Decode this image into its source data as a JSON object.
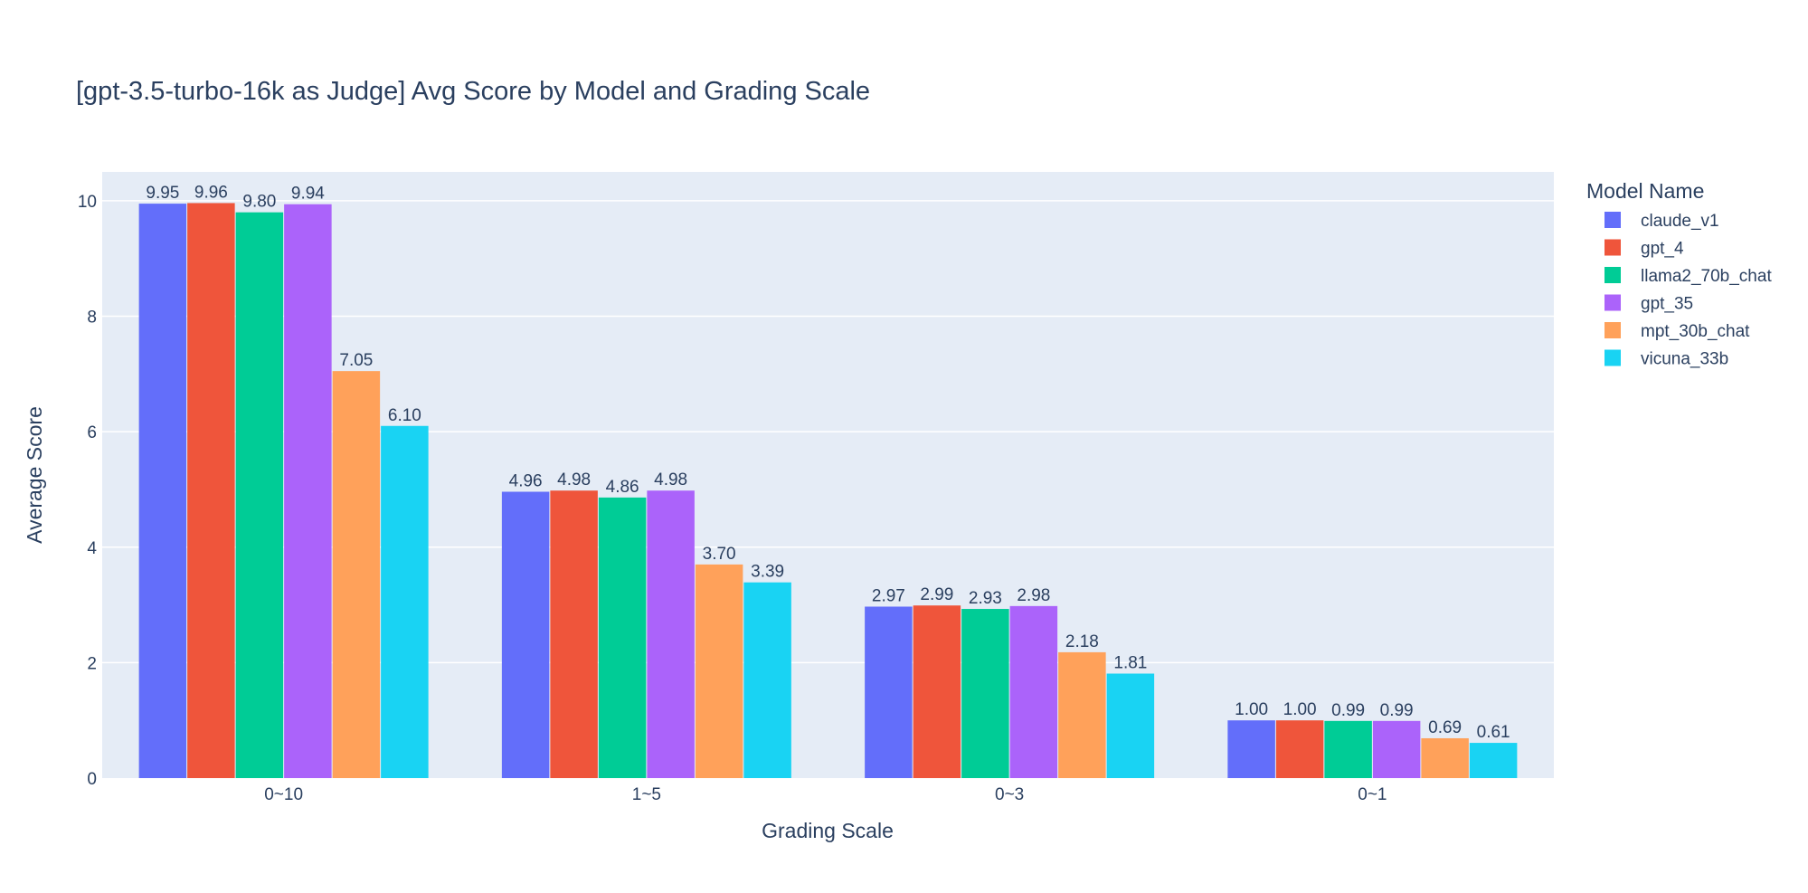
{
  "chart_data": {
    "type": "bar",
    "title": "[gpt-3.5-turbo-16k as Judge] Avg Score by Model and Grading Scale",
    "xlabel": "Grading Scale",
    "ylabel": "Average Score",
    "ylim": [
      0,
      10.5
    ],
    "yticks": [
      0,
      2,
      4,
      6,
      8,
      10
    ],
    "grid": true,
    "legend_title": "Model Name",
    "legend_position": "right",
    "categories": [
      "0~10",
      "1~5",
      "0~3",
      "0~1"
    ],
    "series": [
      {
        "name": "claude_v1",
        "color": "#636efa",
        "values": [
          9.95,
          4.96,
          2.97,
          1.0
        ],
        "labels": [
          "9.95",
          "4.96",
          "2.97",
          "1.00"
        ]
      },
      {
        "name": "gpt_4",
        "color": "#ef553b",
        "values": [
          9.96,
          4.98,
          2.99,
          1.0
        ],
        "labels": [
          "9.96",
          "4.98",
          "2.99",
          "1.00"
        ]
      },
      {
        "name": "llama2_70b_chat",
        "color": "#00cc96",
        "values": [
          9.8,
          4.86,
          2.93,
          0.99
        ],
        "labels": [
          "9.80",
          "4.86",
          "2.93",
          "0.99"
        ]
      },
      {
        "name": "gpt_35",
        "color": "#ab63fa",
        "values": [
          9.94,
          4.98,
          2.98,
          0.99
        ],
        "labels": [
          "9.94",
          "4.98",
          "2.98",
          "0.99"
        ]
      },
      {
        "name": "mpt_30b_chat",
        "color": "#ffa15a",
        "values": [
          7.05,
          3.7,
          2.18,
          0.69
        ],
        "labels": [
          "7.05",
          "3.70",
          "2.18",
          "0.69"
        ]
      },
      {
        "name": "vicuna_33b",
        "color": "#19d3f3",
        "values": [
          6.1,
          3.39,
          1.81,
          0.61
        ],
        "labels": [
          "6.10",
          "3.39",
          "1.81",
          "0.61"
        ]
      }
    ],
    "colors": {
      "plot_background": "#e5ecf6",
      "gridline": "#ffffff",
      "text": "#2a3f5f"
    }
  }
}
